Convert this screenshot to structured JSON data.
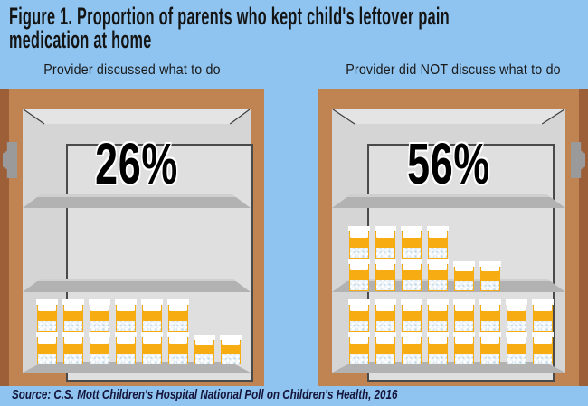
{
  "title": {
    "line1": "Figure 1. Proportion of parents who kept child's leftover pain",
    "line2": "medication at home"
  },
  "source": "Source: C.S. Mott Children's Hospital National Poll on Children's Health, 2016",
  "chart_data": {
    "type": "pictogram",
    "title": "Figure 1. Proportion of parents who kept child's leftover pain medication at home",
    "categories": [
      "Provider discussed what to do",
      "Provider did NOT discuss what to do"
    ],
    "values": [
      26,
      56
    ],
    "value_labels": [
      "26%",
      "56%"
    ],
    "pictogram_unit": "leftover pill bottle in medicine cabinet",
    "source": "Source: C.S. Mott Children's Hospital National Poll on Children's Health, 2016",
    "cabinets": [
      {
        "label": "Provider discussed what to do",
        "value_label": "26%",
        "hinge_side": "left",
        "shelves": {
          "top": [],
          "middle": [],
          "bottom": [
            {
              "bottles": 2,
              "short": false
            },
            {
              "bottles": 2,
              "short": false
            },
            {
              "bottles": 2,
              "short": false
            },
            {
              "bottles": 2,
              "short": false
            },
            {
              "bottles": 2,
              "short": false
            },
            {
              "bottles": 2,
              "short": false
            },
            {
              "bottles": 1,
              "short": true
            },
            {
              "bottles": 1,
              "short": true
            }
          ]
        }
      },
      {
        "label": "Provider did NOT discuss what to do",
        "value_label": "56%",
        "hinge_side": "right",
        "shelves": {
          "top": [],
          "middle": [
            {
              "bottles": 2,
              "short": false
            },
            {
              "bottles": 2,
              "short": false
            },
            {
              "bottles": 2,
              "short": false
            },
            {
              "bottles": 2,
              "short": false
            },
            {
              "bottles": 1,
              "short": true
            },
            {
              "bottles": 1,
              "short": true
            }
          ],
          "bottom": [
            {
              "bottles": 2,
              "short": false
            },
            {
              "bottles": 2,
              "short": false
            },
            {
              "bottles": 2,
              "short": false
            },
            {
              "bottles": 2,
              "short": false
            },
            {
              "bottles": 2,
              "short": false
            },
            {
              "bottles": 2,
              "short": false
            },
            {
              "bottles": 2,
              "short": false
            },
            {
              "bottles": 2,
              "short": false
            }
          ]
        }
      }
    ],
    "colors": {
      "background": "#8FC4F0",
      "cabinet_frame": "#C08452",
      "cabinet_side": "#9D5F37",
      "interior": "#D5D5D5",
      "back_panel": "#DFDFDF",
      "shelf": "#B2B2B2",
      "hinge": "#9A9A9A",
      "bottle_orange": "#F7AC12",
      "text": "#141414"
    }
  }
}
